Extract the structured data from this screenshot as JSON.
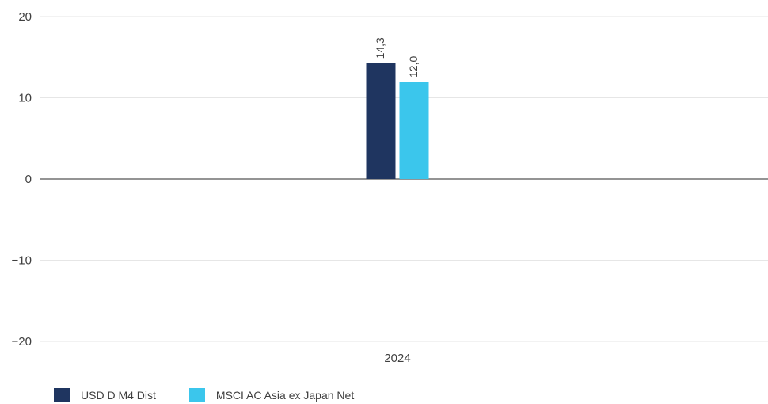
{
  "chart_data": {
    "type": "bar",
    "categories": [
      "2024"
    ],
    "series": [
      {
        "name": "USD D M4 Dist",
        "values": [
          14.3
        ],
        "labels": [
          "14,3"
        ],
        "color": "#1f3560"
      },
      {
        "name": "MSCI AC Asia ex Japan Net",
        "values": [
          12.0
        ],
        "labels": [
          "12,0"
        ],
        "color": "#3bc6ec"
      }
    ],
    "ylim": [
      -20,
      20
    ],
    "yticks": [
      20,
      10,
      0,
      -10,
      -20
    ],
    "ytick_labels": [
      "20",
      "10",
      "0",
      "−10",
      "−20"
    ],
    "grid": true,
    "legend": "bottom-left",
    "title": "",
    "xlabel": "",
    "ylabel": ""
  }
}
